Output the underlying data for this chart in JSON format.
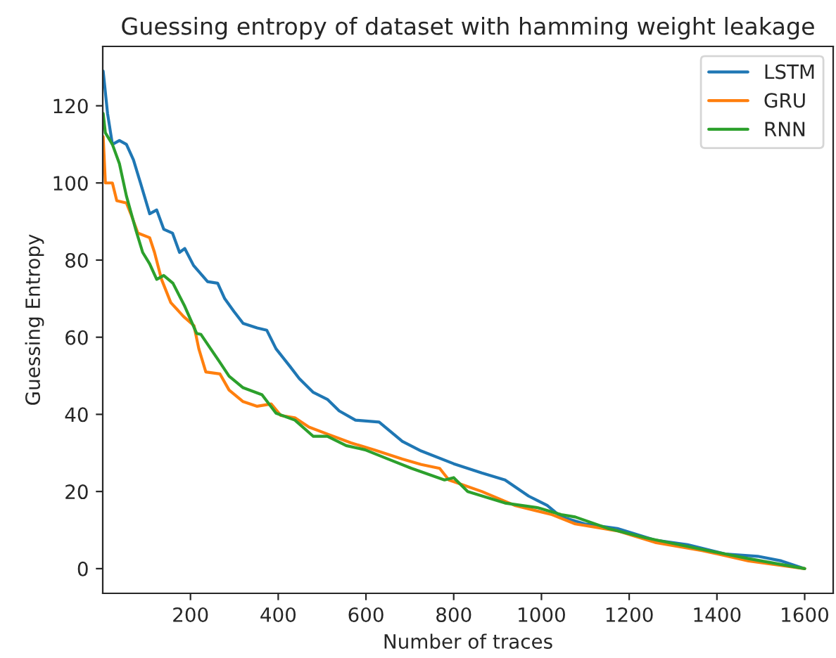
{
  "chart_data": {
    "type": "line",
    "title": "Guessing entropy of dataset with hamming weight leakage",
    "xlabel": "Number of traces",
    "ylabel": "Guessing Entropy",
    "xlim": [
      0,
      1665
    ],
    "xticks": [
      200,
      400,
      600,
      800,
      1000,
      1200,
      1400,
      1600
    ],
    "ylim": [
      -6.4,
      135.4
    ],
    "yticks": [
      0,
      20,
      40,
      60,
      80,
      100,
      120
    ],
    "grid": false,
    "legend": "top right",
    "marker": "none",
    "line_style": "solid",
    "series": [
      {
        "name": "LSTM",
        "color": "#1f77b4",
        "x": [
          1,
          11,
          22,
          38,
          54,
          70,
          86,
          107,
          123,
          139,
          159,
          175,
          187,
          207,
          239,
          262,
          278,
          299,
          320,
          352,
          374,
          395,
          427,
          448,
          480,
          512,
          539,
          576,
          630,
          683,
          726,
          800,
          864,
          917,
          971,
          1013,
          1045,
          1099,
          1173,
          1259,
          1333,
          1419,
          1493,
          1547,
          1600
        ],
        "values": [
          129,
          118,
          110,
          111,
          110,
          106,
          100,
          92,
          93,
          88,
          87,
          82,
          83,
          78.6,
          74.4,
          74,
          70,
          66.7,
          63.6,
          62.4,
          61.8,
          57,
          52.4,
          49.3,
          45.7,
          43.9,
          40.9,
          38.5,
          38,
          33,
          30.5,
          27.2,
          24.8,
          23,
          18.8,
          16.4,
          13.4,
          11.6,
          10.4,
          7.4,
          6.2,
          3.8,
          3.2,
          2,
          0
        ]
      },
      {
        "name": "GRU",
        "color": "#ff7f0e",
        "x": [
          1,
          6,
          22,
          32,
          54,
          64,
          80,
          107,
          118,
          134,
          155,
          184,
          208,
          219,
          235,
          267,
          288,
          320,
          352,
          384,
          406,
          438,
          470,
          512,
          566,
          619,
          683,
          726,
          768,
          789,
          864,
          939,
          1024,
          1077,
          1173,
          1259,
          1366,
          1472,
          1600
        ],
        "values": [
          112,
          100,
          100,
          95.4,
          94.8,
          92,
          87,
          85.8,
          82,
          75,
          69,
          65.4,
          63,
          57,
          51,
          50.5,
          46.3,
          43.3,
          42.1,
          42.7,
          39.7,
          39.1,
          36.7,
          34.9,
          32.6,
          30.8,
          28.4,
          27,
          26,
          23,
          20,
          16.4,
          14,
          11.6,
          9.8,
          6.8,
          4.7,
          2,
          0
        ]
      },
      {
        "name": "RNN",
        "color": "#2ca02c",
        "x": [
          1,
          6,
          22,
          38,
          54,
          75,
          91,
          107,
          123,
          139,
          160,
          187,
          214,
          224,
          246,
          267,
          288,
          320,
          363,
          395,
          438,
          480,
          512,
          555,
          598,
          651,
          704,
          779,
          800,
          832,
          917,
          992,
          1045,
          1077,
          1152,
          1237,
          1366,
          1472,
          1600
        ],
        "values": [
          118,
          113,
          110,
          105,
          96.6,
          88,
          82,
          79,
          75,
          76,
          74,
          68,
          61,
          60.7,
          57,
          53.5,
          49.9,
          46.9,
          45.1,
          40.3,
          38.5,
          34.3,
          34.3,
          31.9,
          30.8,
          28.4,
          26,
          23,
          23.6,
          20,
          17,
          15.8,
          14,
          13.4,
          10.4,
          8,
          5,
          2.6,
          0
        ]
      }
    ]
  }
}
